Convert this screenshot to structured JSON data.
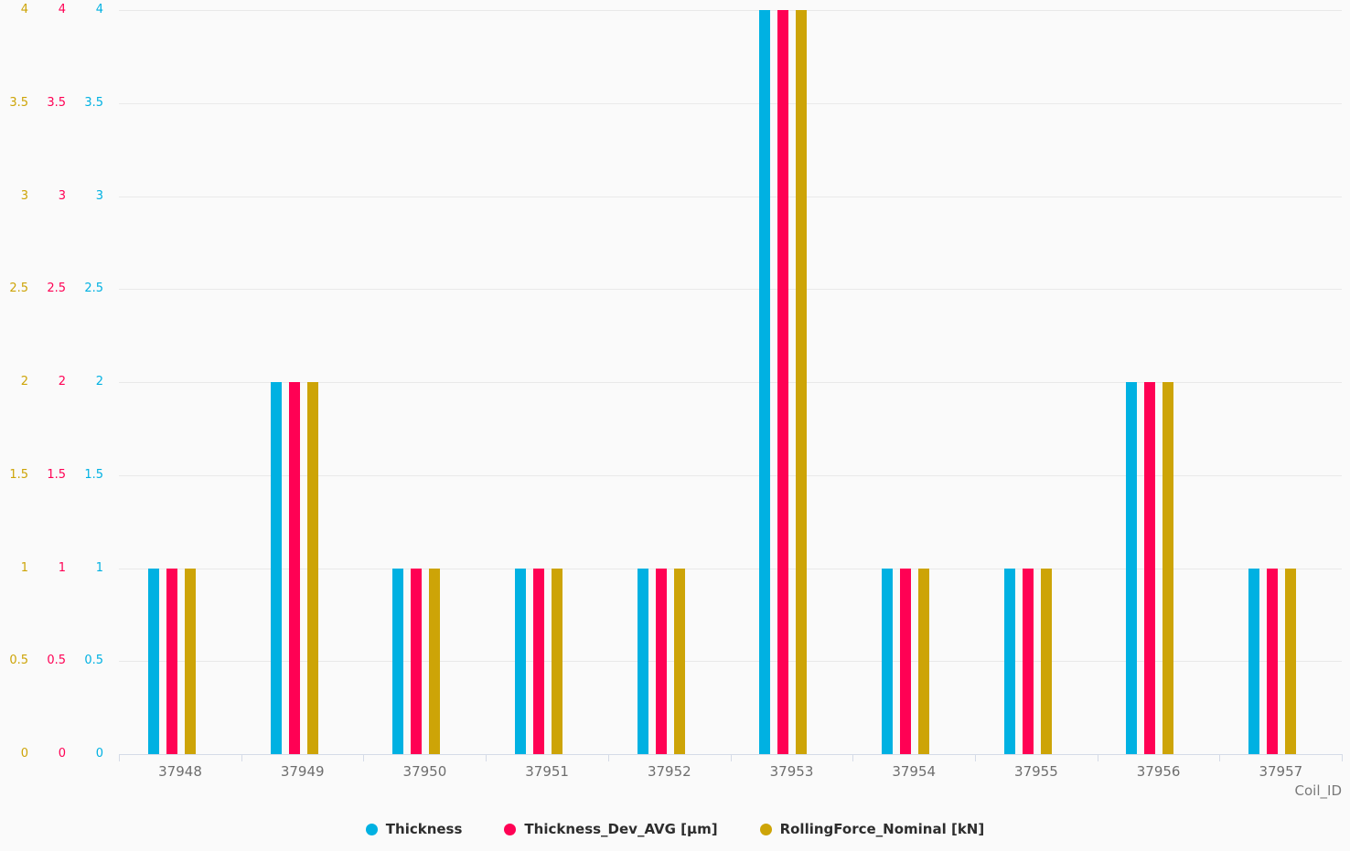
{
  "chart_data": {
    "type": "bar",
    "title": "",
    "xlabel": "Coil_ID",
    "ylabel": "",
    "ylim": [
      0,
      4
    ],
    "ytick_step": 0.5,
    "yticks": [
      "0",
      "0.5",
      "1",
      "1.5",
      "2",
      "2.5",
      "3",
      "3.5",
      "4"
    ],
    "grid": true,
    "legend_position": "bottom-center",
    "categories": [
      "37948",
      "37949",
      "37950",
      "37951",
      "37952",
      "37953",
      "37954",
      "37955",
      "37956",
      "37957"
    ],
    "series": [
      {
        "name": "Thickness",
        "color": "#00b1e2",
        "values": [
          1,
          2,
          1,
          1,
          1,
          4,
          1,
          1,
          2,
          1
        ]
      },
      {
        "name": "Thickness_Dev_AVG [µm]",
        "color": "#ff0154",
        "values": [
          1,
          2,
          1,
          1,
          1,
          4,
          1,
          1,
          2,
          1
        ]
      },
      {
        "name": "RollingForce_Nominal [kN]",
        "color": "#cda407",
        "values": [
          1,
          2,
          1,
          1,
          1,
          4,
          1,
          1,
          2,
          1
        ]
      }
    ],
    "value_axes_note": "three value axes on the left, one per series, ordered left-to-right: RollingForce_Nominal, Thickness_Dev_AVG, Thickness, all scaled 0-4"
  },
  "colors": {
    "background": "#fafafa",
    "gridline": "#e9e9e9",
    "axis_line": "#d5dbe7",
    "x_label_text": "#6e6e6e",
    "legend_text": "#2d2d2d"
  }
}
